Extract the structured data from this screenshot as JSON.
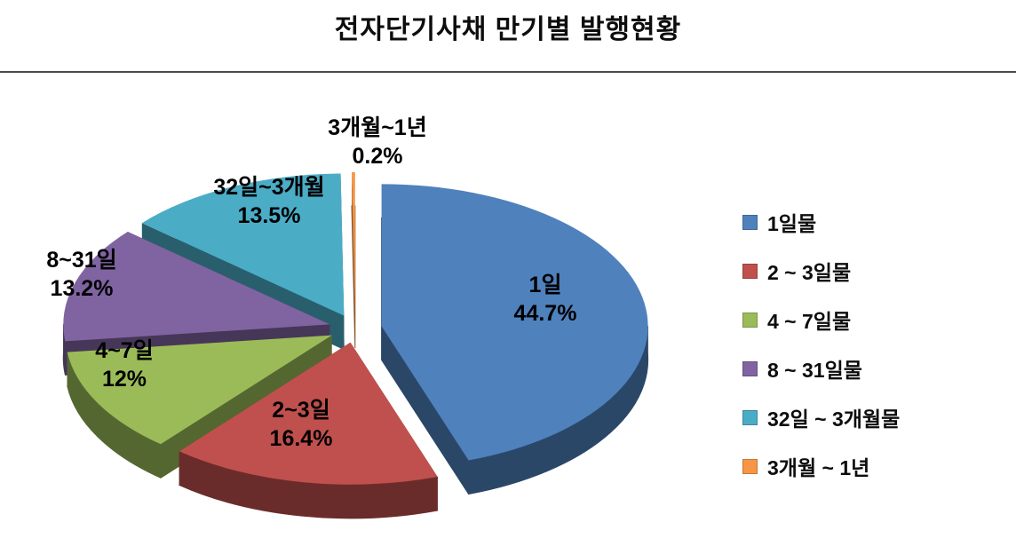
{
  "page": {
    "background": "#ffffff"
  },
  "header": {
    "title": "전자단기사채 만기별 발행현황"
  },
  "chart_data": {
    "type": "pie",
    "style": "3d-exploded",
    "title": "전자단기사채 만기별 발행현황",
    "start_angle_deg": 0,
    "direction": "clockwise",
    "categories": [
      "1일",
      "2~3일",
      "4~7일",
      "8~31일",
      "32일~3개월",
      "3개월~1년"
    ],
    "values": [
      44.7,
      16.4,
      12,
      13.2,
      13.5,
      0.2
    ],
    "value_labels": [
      "44.7%",
      "16.4%",
      "12%",
      "13.2%",
      "13.5%",
      "0.2%"
    ],
    "colors": [
      "#4f81bd",
      "#c0504d",
      "#9bbb59",
      "#8064a2",
      "#4bacc6",
      "#f79646"
    ],
    "legend": {
      "position": "right",
      "entries": [
        "1일물",
        "2 ~ 3일물",
        "4 ~ 7일물",
        "8 ~ 31일물",
        "32일 ~ 3개월물",
        "3개월 ~ 1년"
      ]
    }
  }
}
